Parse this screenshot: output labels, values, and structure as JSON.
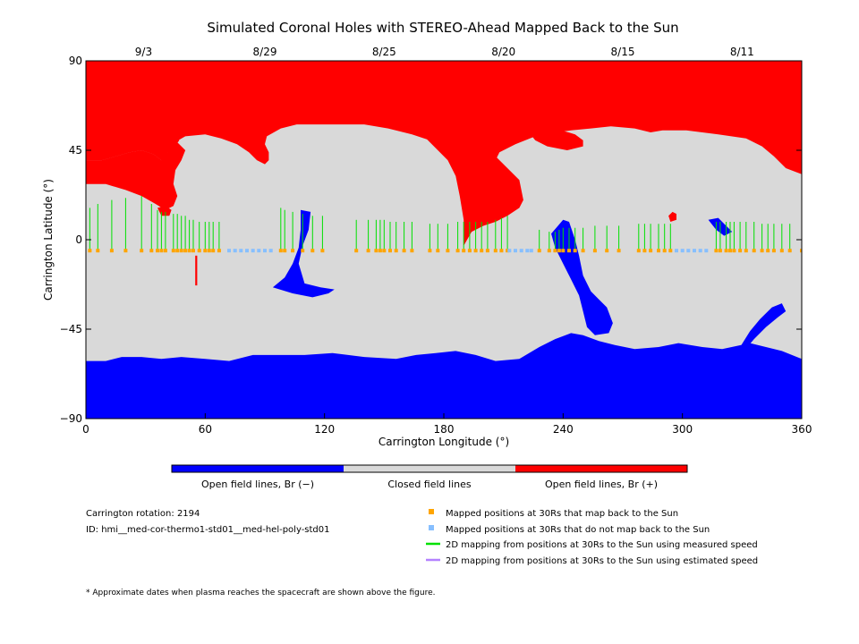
{
  "chart_data": {
    "type": "map",
    "title": "Simulated Coronal Holes with STEREO-Ahead Mapped Back to the Sun",
    "xlabel": "Carrington Longitude (°)",
    "ylabel": "Carrington Latitude (°)",
    "xlim": [
      0,
      360
    ],
    "ylim": [
      -90,
      90
    ],
    "x_ticks": [
      "0",
      "60",
      "120",
      "180",
      "240",
      "300",
      "360"
    ],
    "y_ticks": [
      "90",
      "45",
      "0",
      "−45",
      "−90"
    ],
    "top_dates": [
      {
        "label": "9/3",
        "lon": 29
      },
      {
        "label": "8/29",
        "lon": 90
      },
      {
        "label": "8/25",
        "lon": 150
      },
      {
        "label": "8/20",
        "lon": 210
      },
      {
        "label": "8/15",
        "lon": 270
      },
      {
        "label": "8/11",
        "lon": 330
      }
    ],
    "colors": {
      "negative": "#0000ff",
      "closed": "#d9d9d9",
      "positive": "#ff0000",
      "mapped": "#ffa500",
      "unmapped": "#87bfff",
      "measured": "#00e000",
      "estimated": "#b482ff"
    },
    "mapped_lat": -5.5,
    "mapped_points": [
      [
        2,
        16
      ],
      [
        6,
        18
      ],
      [
        13,
        20
      ],
      [
        20,
        21
      ],
      [
        28,
        22
      ],
      [
        33,
        18
      ],
      [
        36,
        15
      ],
      [
        38,
        14
      ],
      [
        40,
        14
      ],
      [
        44,
        13
      ],
      [
        46,
        13
      ],
      [
        48,
        12
      ],
      [
        50,
        12
      ],
      [
        52,
        10
      ],
      [
        54,
        10
      ],
      [
        57,
        9
      ],
      [
        60,
        9
      ],
      [
        62,
        9
      ],
      [
        64,
        9
      ],
      [
        67,
        9
      ],
      [
        98,
        16
      ],
      [
        100,
        15
      ],
      [
        104,
        14
      ],
      [
        109,
        13
      ],
      [
        114,
        12
      ],
      [
        119,
        12
      ],
      [
        136,
        10
      ],
      [
        142,
        10
      ],
      [
        146,
        10
      ],
      [
        148,
        10
      ],
      [
        150,
        10
      ],
      [
        153,
        9
      ],
      [
        156,
        9
      ],
      [
        160,
        9
      ],
      [
        164,
        9
      ],
      [
        173,
        8
      ],
      [
        177,
        8
      ],
      [
        182,
        8
      ],
      [
        187,
        9
      ],
      [
        190,
        9
      ],
      [
        193,
        9
      ],
      [
        196,
        9
      ],
      [
        199,
        9
      ],
      [
        202,
        9
      ],
      [
        206,
        10
      ],
      [
        209,
        11
      ],
      [
        212,
        12
      ],
      [
        228,
        5
      ],
      [
        233,
        4
      ],
      [
        236,
        4
      ],
      [
        238,
        5
      ],
      [
        240,
        6
      ],
      [
        243,
        6
      ],
      [
        246,
        6
      ],
      [
        250,
        6
      ],
      [
        256,
        7
      ],
      [
        262,
        7
      ],
      [
        268,
        7
      ],
      [
        278,
        8
      ],
      [
        281,
        8
      ],
      [
        284,
        8
      ],
      [
        288,
        8
      ],
      [
        291,
        8
      ],
      [
        294,
        8
      ],
      [
        317,
        9
      ],
      [
        319,
        9
      ],
      [
        322,
        9
      ],
      [
        324,
        9
      ],
      [
        326,
        9
      ],
      [
        329,
        9
      ],
      [
        332,
        9
      ],
      [
        336,
        9
      ],
      [
        340,
        8
      ],
      [
        343,
        8
      ],
      [
        346,
        8
      ],
      [
        350,
        8
      ],
      [
        354,
        8
      ],
      [
        360,
        13
      ]
    ],
    "unmapped_points": [
      72,
      75,
      78,
      81,
      84,
      87,
      90,
      93,
      213,
      216,
      219,
      222,
      224,
      297,
      300,
      303,
      306,
      309,
      312
    ],
    "regions": {
      "north_positive": [
        [
          0,
          90
        ],
        [
          360,
          90
        ],
        [
          360,
          33
        ],
        [
          352,
          36
        ],
        [
          346,
          42
        ],
        [
          340,
          47
        ],
        [
          332,
          51
        ],
        [
          318,
          53
        ],
        [
          302,
          55
        ],
        [
          290,
          55
        ],
        [
          284,
          54
        ],
        [
          276,
          56
        ],
        [
          264,
          57
        ],
        [
          254,
          56
        ],
        [
          244,
          55
        ],
        [
          236,
          54
        ],
        [
          226,
          52
        ],
        [
          216,
          48
        ],
        [
          208,
          44
        ],
        [
          206,
          40
        ],
        [
          200,
          42
        ],
        [
          192,
          43
        ],
        [
          186,
          45
        ],
        [
          180,
          48
        ],
        [
          173,
          50
        ],
        [
          164,
          53
        ],
        [
          152,
          56
        ],
        [
          140,
          58
        ],
        [
          128,
          58
        ],
        [
          116,
          58
        ],
        [
          106,
          58
        ],
        [
          98,
          56
        ],
        [
          91,
          52
        ],
        [
          90,
          48
        ],
        [
          92,
          44
        ],
        [
          92,
          40
        ],
        [
          90,
          38
        ],
        [
          86,
          40
        ],
        [
          82,
          44
        ],
        [
          76,
          48
        ],
        [
          68,
          51
        ],
        [
          60,
          53
        ],
        [
          50,
          52
        ],
        [
          43,
          48
        ],
        [
          41,
          44
        ],
        [
          42,
          40
        ],
        [
          38,
          40
        ],
        [
          34,
          43
        ],
        [
          28,
          45
        ],
        [
          22,
          44
        ],
        [
          15,
          42
        ],
        [
          8,
          40
        ],
        [
          0,
          40
        ]
      ],
      "north_positive_lobe1": [
        [
          0,
          40
        ],
        [
          8,
          40
        ],
        [
          15,
          42
        ],
        [
          22,
          44
        ],
        [
          28,
          45
        ],
        [
          34,
          43
        ],
        [
          38,
          40
        ],
        [
          42,
          40
        ],
        [
          41,
          44
        ],
        [
          44,
          46
        ],
        [
          47,
          50
        ],
        [
          44,
          53
        ],
        [
          38,
          56
        ],
        [
          30,
          58
        ],
        [
          22,
          60
        ],
        [
          14,
          61
        ],
        [
          8,
          62
        ],
        [
          0,
          62
        ]
      ],
      "north_positive_lobe2": [
        [
          40,
          52
        ],
        [
          46,
          49
        ],
        [
          50,
          45
        ],
        [
          48,
          40
        ],
        [
          45,
          35
        ],
        [
          44,
          28
        ],
        [
          46,
          22
        ],
        [
          44,
          17
        ],
        [
          40,
          15
        ],
        [
          35,
          18
        ],
        [
          28,
          22
        ],
        [
          20,
          25
        ],
        [
          10,
          28
        ],
        [
          0,
          28
        ],
        [
          0,
          40
        ],
        [
          8,
          40
        ],
        [
          15,
          42
        ],
        [
          22,
          44
        ],
        [
          28,
          45
        ],
        [
          34,
          43
        ],
        [
          38,
          40
        ],
        [
          41,
          44
        ]
      ],
      "north_positive_lobe3": [
        [
          184,
          56
        ],
        [
          196,
          50
        ],
        [
          204,
          44
        ],
        [
          212,
          36
        ],
        [
          218,
          30
        ],
        [
          220,
          20
        ],
        [
          218,
          16
        ],
        [
          212,
          12
        ],
        [
          206,
          9
        ],
        [
          200,
          7
        ],
        [
          194,
          4
        ],
        [
          190,
          -3
        ],
        [
          190,
          10
        ],
        [
          188,
          22
        ],
        [
          186,
          32
        ],
        [
          182,
          40
        ],
        [
          176,
          46
        ],
        [
          170,
          52
        ],
        [
          180,
          55
        ]
      ],
      "north_positive_lobe4": [
        [
          224,
          58
        ],
        [
          236,
          56
        ],
        [
          246,
          53
        ],
        [
          250,
          50
        ],
        [
          250,
          47
        ],
        [
          242,
          45
        ],
        [
          232,
          47
        ],
        [
          226,
          50
        ],
        [
          222,
          55
        ]
      ],
      "south_negative": [
        [
          0,
          -90
        ],
        [
          360,
          -90
        ],
        [
          360,
          -60
        ],
        [
          350,
          -56
        ],
        [
          342,
          -54
        ],
        [
          334,
          -52
        ],
        [
          320,
          -55
        ],
        [
          310,
          -54
        ],
        [
          298,
          -52
        ],
        [
          288,
          -54
        ],
        [
          276,
          -55
        ],
        [
          266,
          -53
        ],
        [
          258,
          -51
        ],
        [
          250,
          -48
        ],
        [
          244,
          -47
        ],
        [
          236,
          -50
        ],
        [
          228,
          -54
        ],
        [
          218,
          -60
        ],
        [
          206,
          -61
        ],
        [
          196,
          -58
        ],
        [
          186,
          -56
        ],
        [
          176,
          -57
        ],
        [
          166,
          -58
        ],
        [
          156,
          -60
        ],
        [
          140,
          -59
        ],
        [
          124,
          -57
        ],
        [
          110,
          -58
        ],
        [
          98,
          -58
        ],
        [
          84,
          -58
        ],
        [
          72,
          -61
        ],
        [
          60,
          -60
        ],
        [
          48,
          -59
        ],
        [
          38,
          -60
        ],
        [
          28,
          -59
        ],
        [
          18,
          -59
        ],
        [
          10,
          -61
        ],
        [
          0,
          -61
        ]
      ],
      "neg_spike_240": [
        [
          234,
          3
        ],
        [
          240,
          10
        ],
        [
          243,
          9
        ],
        [
          246,
          0
        ],
        [
          248,
          -8
        ],
        [
          250,
          -18
        ],
        [
          254,
          -26
        ],
        [
          258,
          -30
        ],
        [
          262,
          -34
        ],
        [
          265,
          -42
        ],
        [
          263,
          -47
        ],
        [
          256,
          -48
        ],
        [
          252,
          -44
        ],
        [
          250,
          -36
        ],
        [
          248,
          -28
        ],
        [
          244,
          -20
        ],
        [
          240,
          -12
        ],
        [
          236,
          -4
        ]
      ],
      "neg_tongue_110": [
        [
          108,
          15
        ],
        [
          113,
          14
        ],
        [
          112,
          5
        ],
        [
          109,
          -3
        ],
        [
          107,
          -12
        ],
        [
          110,
          -22
        ],
        [
          118,
          -24
        ],
        [
          125,
          -25
        ],
        [
          122,
          -27
        ],
        [
          114,
          -29
        ],
        [
          104,
          -27
        ],
        [
          94,
          -24
        ],
        [
          100,
          -19
        ],
        [
          104,
          -12
        ],
        [
          107,
          -4
        ],
        [
          108,
          5
        ]
      ],
      "neg_blob_320": [
        [
          313,
          10
        ],
        [
          318,
          11
        ],
        [
          321,
          8
        ],
        [
          325,
          4
        ],
        [
          321,
          2
        ],
        [
          317,
          5
        ]
      ],
      "neg_arc_350": [
        [
          350,
          -32
        ],
        [
          345,
          -34
        ],
        [
          339,
          -40
        ],
        [
          334,
          -46
        ],
        [
          329,
          -54
        ],
        [
          331,
          -56
        ],
        [
          336,
          -50
        ],
        [
          342,
          -44
        ],
        [
          348,
          -39
        ],
        [
          352,
          -36
        ]
      ],
      "pos_blob_294": [
        [
          293,
          12
        ],
        [
          295,
          14
        ],
        [
          297,
          13
        ],
        [
          297,
          10
        ],
        [
          294,
          9
        ]
      ],
      "pos_blob_40": [
        [
          36,
          16
        ],
        [
          40,
          17
        ],
        [
          43,
          15
        ],
        [
          42,
          12
        ],
        [
          38,
          12
        ]
      ],
      "pos_line_55": [
        [
          55,
          -8
        ],
        [
          56,
          -8
        ],
        [
          56,
          -23
        ],
        [
          55,
          -23
        ]
      ]
    }
  },
  "colorbar": {
    "labels": [
      "Open field lines, Br (−)",
      "Closed field lines",
      "Open field lines, Br (+)"
    ]
  },
  "info": {
    "rotation": "Carrington rotation: 2194",
    "id": "ID: hmi__med-cor-thermo1-std01__med-hel-poly-std01",
    "footnote": "* Approximate dates when plasma reaches the spacecraft are shown above the figure."
  },
  "legend": {
    "items": [
      {
        "key": "mapped",
        "label": "Mapped positions at 30Rs that map back to the Sun"
      },
      {
        "key": "unmapped",
        "label": "Mapped positions at 30Rs that do not map back to the Sun"
      },
      {
        "key": "measured",
        "label": "2D mapping from positions at 30Rs to the Sun using measured speed"
      },
      {
        "key": "estimated",
        "label": "2D mapping from positions at 30Rs to the Sun using estimated speed"
      }
    ]
  }
}
